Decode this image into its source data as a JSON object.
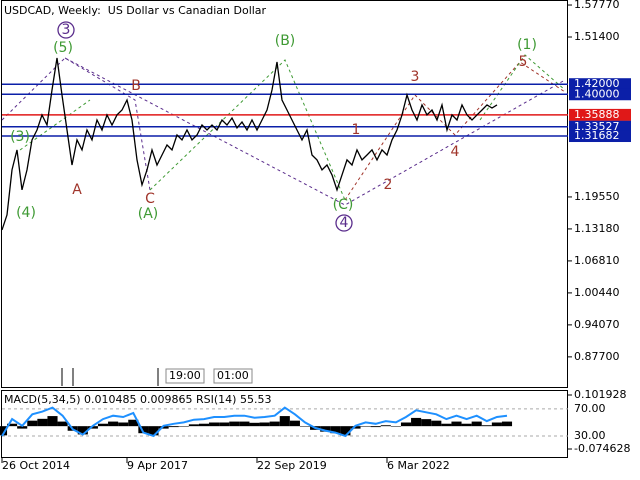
{
  "chart_data": {
    "type": "line",
    "title": "USDCAD, Weekly:  US Dollar vs Canadian Dollar",
    "series": [
      {
        "color": "#000000",
        "values": [
          1.1298,
          1.1597,
          1.2493,
          1.2891,
          1.2095,
          1.2493,
          1.309,
          1.3289,
          1.3588,
          1.3388,
          1.4085,
          1.4722,
          1.3986,
          1.3289,
          1.2592,
          1.309,
          1.2891,
          1.3289,
          1.309,
          1.3488,
          1.3289,
          1.3588,
          1.3388,
          1.3588,
          1.3687,
          1.3886,
          1.3488,
          1.2692,
          1.2194,
          1.2493,
          1.2891,
          1.2592,
          1.2791,
          1.299,
          1.2891,
          1.3189,
          1.309,
          1.3289,
          1.309,
          1.3189,
          1.3388,
          1.3289,
          1.3388,
          1.3289,
          1.3488,
          1.3388,
          1.3528,
          1.3329,
          1.3448,
          1.3289,
          1.3488,
          1.3289,
          1.3488,
          1.3687,
          1.4085,
          1.4642,
          1.3886,
          1.3687,
          1.3488,
          1.3289,
          1.309,
          1.3289,
          1.2791,
          1.2692,
          1.2493,
          1.2592,
          1.2393,
          1.2095,
          1.2393,
          1.2692,
          1.2592,
          1.2891,
          1.2692,
          1.2791,
          1.2891,
          1.2692,
          1.2891,
          1.2791,
          1.309,
          1.3289,
          1.3588,
          1.3986,
          1.3687,
          1.3488,
          1.3787,
          1.3588,
          1.3687,
          1.3488,
          1.3787,
          1.3289,
          1.3588,
          1.3488,
          1.3787,
          1.3588,
          1.3488,
          1.3588,
          1.3687,
          1.3787,
          1.3727,
          1.3787
        ]
      }
    ],
    "xlim": [
      0,
      101
    ],
    "ylim": [
      0.815,
      1.5877
    ],
    "yticks": [
      {
        "value": 1.5777,
        "label": "1.57770"
      },
      {
        "value": 1.514,
        "label": "1.51400"
      },
      {
        "value": 1.1955,
        "label": "1.19550"
      },
      {
        "value": 1.1318,
        "label": "1.13180"
      },
      {
        "value": 1.0681,
        "label": "1.06810"
      },
      {
        "value": 1.0044,
        "label": "1.00440"
      },
      {
        "value": 0.9407,
        "label": "0.94070"
      },
      {
        "value": 0.877,
        "label": "0.87700"
      }
    ],
    "xticks": [
      {
        "value": 0,
        "label": "26 Oct 2014"
      },
      {
        "value": 25,
        "label": "9 Apr 2017"
      },
      {
        "value": 51,
        "label": "22 Sep 2019"
      },
      {
        "value": 77,
        "label": "6 Mar 2022"
      }
    ],
    "levels": [
      {
        "value": 1.42,
        "label": "1.42000",
        "color": "#0b1fa8"
      },
      {
        "value": 1.4,
        "label": "1.40000",
        "color": "#0b1fa8"
      },
      {
        "value": 1.35888,
        "label": "1.35888",
        "color": "#e01818"
      },
      {
        "value": 1.33527,
        "label": "1.33527",
        "color": "#0b1fa8"
      },
      {
        "value": 1.31682,
        "label": "1.31682",
        "color": "#0b1fa8"
      }
    ],
    "annotations": [
      {
        "text": "(3)",
        "color": "#3f9a34"
      },
      {
        "text": "(5)",
        "color": "#3f9a34"
      },
      {
        "text": "3",
        "color": "#5a2d8c"
      },
      {
        "text": "(4)",
        "color": "#3f9a34"
      },
      {
        "text": "A",
        "color": "#a0352b"
      },
      {
        "text": "B",
        "color": "#a0352b"
      },
      {
        "text": "C",
        "color": "#a0352b"
      },
      {
        "text": "(A)",
        "color": "#3f9a34"
      },
      {
        "text": "(B)",
        "color": "#3f9a34"
      },
      {
        "text": "(C)",
        "color": "#3f9a34"
      },
      {
        "text": "4",
        "color": "#5a2d8c"
      },
      {
        "text": "1",
        "color": "#a0352b"
      },
      {
        "text": "2",
        "color": "#a0352b"
      },
      {
        "text": "3",
        "color": "#a0352b"
      },
      {
        "text": "4",
        "color": "#a0352b"
      },
      {
        "text": "5",
        "color": "#a0352b"
      },
      {
        "text": "(1)",
        "color": "#3f9a34"
      }
    ],
    "time_markers": [
      "19:00",
      "01:00"
    ]
  },
  "indicator": {
    "label": "MACD(5,34,5) 0.010485 0.009865 RSI(14) 55.53",
    "macd": {
      "color": "#000000",
      "ylim": [
        -0.1041,
        0.1183
      ],
      "yticks": [
        0.101928,
        -0.074628
      ],
      "values": [
        -0.03,
        0.008,
        -0.008,
        0.018,
        0.024,
        0.033,
        0.015,
        -0.015,
        -0.027,
        -0.008,
        0.008,
        0.015,
        0.012,
        0.021,
        -0.023,
        -0.03,
        -0.008,
        -0.003,
        0,
        0.006,
        0.008,
        0.012,
        0.012,
        0.015,
        0.015,
        0.011,
        0.012,
        0.015,
        0.033,
        0.018,
        0,
        -0.012,
        -0.018,
        -0.023,
        -0.03,
        -0.008,
        0,
        -0.003,
        0.003,
        0,
        0.012,
        0.027,
        0.023,
        0.018,
        0.008,
        0.015,
        0.008,
        0.015,
        0.003,
        0.012,
        0.015
      ]
    },
    "rsi": {
      "color": "#1e90ff",
      "ylim": [
        -2.6,
        98
      ],
      "yticks": [
        {
          "value": 70,
          "label": "70.00"
        },
        {
          "value": 30,
          "label": "30.00"
        }
      ],
      "values": [
        30,
        55,
        45,
        62,
        66,
        72,
        60,
        40,
        32,
        45,
        55,
        60,
        58,
        64,
        35,
        30,
        45,
        48,
        50,
        54,
        55,
        58,
        58,
        60,
        60,
        57,
        58,
        60,
        72,
        62,
        50,
        42,
        38,
        35,
        30,
        45,
        50,
        48,
        52,
        50,
        58,
        68,
        65,
        62,
        55,
        60,
        55,
        60,
        52,
        58,
        60
      ]
    }
  }
}
